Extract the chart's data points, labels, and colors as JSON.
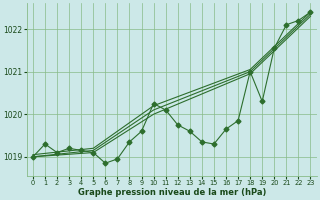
{
  "background_color": "#cce8e8",
  "grid_color": "#88bb88",
  "line_color": "#2d6e2d",
  "marker_color": "#2d6e2d",
  "xlabel": "Graphe pression niveau de la mer (hPa)",
  "xlim": [
    -0.5,
    23.5
  ],
  "ylim": [
    1018.55,
    1022.6
  ],
  "yticks": [
    1019,
    1020,
    1021,
    1022
  ],
  "xticks": [
    0,
    1,
    2,
    3,
    4,
    5,
    6,
    7,
    8,
    9,
    10,
    11,
    12,
    13,
    14,
    15,
    16,
    17,
    18,
    19,
    20,
    21,
    22,
    23
  ],
  "series_main": {
    "x": [
      0,
      1,
      2,
      3,
      4,
      5,
      6,
      7,
      8,
      9,
      10,
      11,
      12,
      13,
      14,
      15,
      16,
      17,
      18,
      19,
      20,
      21,
      22,
      23
    ],
    "y": [
      1019.0,
      1019.3,
      1019.1,
      1019.2,
      1019.15,
      1019.1,
      1018.85,
      1018.95,
      1019.35,
      1019.6,
      1020.25,
      1020.1,
      1019.75,
      1019.6,
      1019.35,
      1019.3,
      1019.65,
      1019.85,
      1021.0,
      1020.3,
      1021.55,
      1022.1,
      1022.2,
      1022.4
    ]
  },
  "trend1": {
    "x": [
      0,
      5,
      10,
      18,
      23
    ],
    "y": [
      1019.0,
      1019.15,
      1020.1,
      1021.0,
      1022.35
    ]
  },
  "trend2": {
    "x": [
      0,
      5,
      10,
      18,
      23
    ],
    "y": [
      1019.05,
      1019.2,
      1020.2,
      1021.05,
      1022.4
    ]
  },
  "trend3": {
    "x": [
      0,
      5,
      10,
      18,
      23
    ],
    "y": [
      1019.0,
      1019.1,
      1020.0,
      1020.95,
      1022.3
    ]
  }
}
